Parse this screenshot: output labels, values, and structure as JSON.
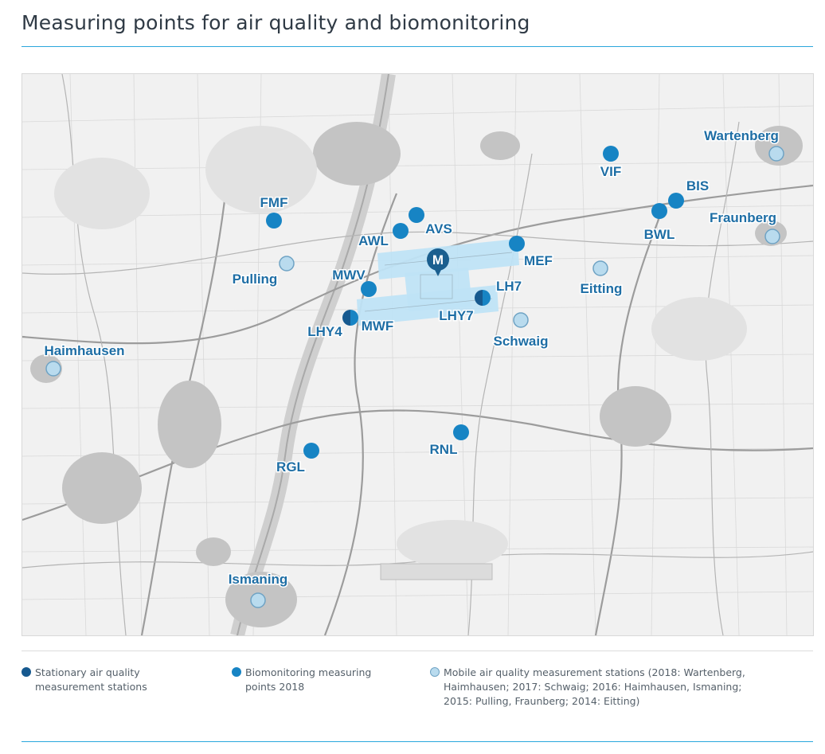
{
  "title": "Measuring points for air quality and biomonitoring",
  "colors": {
    "accent_rule": "#2aa7dc",
    "stationary": "#16598f",
    "biomonitoring": "#1784c4",
    "mobile_fill": "#b9dbee",
    "mobile_stroke": "#6fa3c4",
    "label": "#1e6ea5",
    "airport": "#bfe3f5",
    "airport_marker": "#1b5f8f"
  },
  "airport": {
    "marker_letter": "M"
  },
  "stations": [
    {
      "code": "Wartenberg",
      "kind": "mobile"
    },
    {
      "code": "VIF",
      "kind": "biomonitoring"
    },
    {
      "code": "BIS",
      "kind": "biomonitoring"
    },
    {
      "code": "BWL",
      "kind": "biomonitoring"
    },
    {
      "code": "Fraunberg",
      "kind": "mobile"
    },
    {
      "code": "FMF",
      "kind": "biomonitoring"
    },
    {
      "code": "AVS",
      "kind": "biomonitoring"
    },
    {
      "code": "AWL",
      "kind": "biomonitoring"
    },
    {
      "code": "MEF",
      "kind": "biomonitoring"
    },
    {
      "code": "Pulling",
      "kind": "mobile"
    },
    {
      "code": "MWV",
      "kind": "biomonitoring"
    },
    {
      "code": "Eitting",
      "kind": "mobile"
    },
    {
      "code": "LH7",
      "kind": "stationary+biomonitoring"
    },
    {
      "code": "LHY7",
      "kind": "stationary"
    },
    {
      "code": "LHY4",
      "kind": "stationary+biomonitoring"
    },
    {
      "code": "MWF",
      "kind": "biomonitoring"
    },
    {
      "code": "Schwaig",
      "kind": "mobile"
    },
    {
      "code": "Haimhausen",
      "kind": "mobile"
    },
    {
      "code": "RNL",
      "kind": "biomonitoring"
    },
    {
      "code": "RGL",
      "kind": "biomonitoring"
    },
    {
      "code": "Ismaning",
      "kind": "mobile"
    }
  ],
  "legend": {
    "stationary": {
      "line1": "Stationary air quality",
      "line2": "measurement stations"
    },
    "biomonitoring": {
      "line1": "Biomonitoring measuring",
      "line2": "points 2018"
    },
    "mobile": {
      "line1": "Mobile air quality measurement stations (2018: Wartenberg,",
      "line2": "Haimhausen; 2017: Schwaig; 2016: Haimhausen, Ismaning;",
      "line3": "2015: Pulling, Fraunberg; 2014: Eitting)"
    }
  }
}
